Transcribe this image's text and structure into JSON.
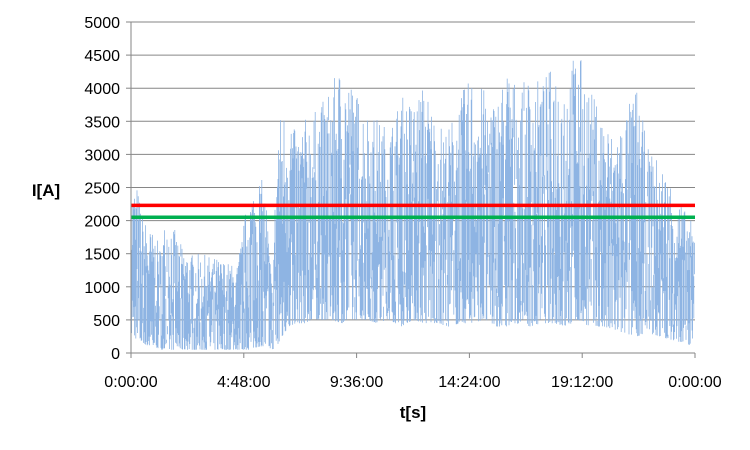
{
  "chart_data": {
    "type": "line",
    "title": "",
    "xlabel": "t[s]",
    "ylabel": "I[A]",
    "xlim": [
      "0:00:00",
      "24:00:00"
    ],
    "ylim": [
      0,
      5000
    ],
    "x_ticks": [
      "0:00:00",
      "4:48:00",
      "9:36:00",
      "14:24:00",
      "19:12:00",
      "0:00:00"
    ],
    "y_ticks": [
      0,
      500,
      1000,
      1500,
      2000,
      2500,
      3000,
      3500,
      4000,
      4500,
      5000
    ],
    "grid": "horizontal",
    "legend": "none",
    "series": [
      {
        "color": "#8eb4e3",
        "x": [
          "0:00:00",
          "0:15:00",
          "0:30:00",
          "0:45:00",
          "1:00:00",
          "1:15:00",
          "1:30:00",
          "1:45:00",
          "2:00:00",
          "2:30:00",
          "3:00:00",
          "3:30:00",
          "4:00:00",
          "4:30:00",
          "5:00:00",
          "5:30:00",
          "5:45:00",
          "6:00:00",
          "6:15:00",
          "6:30:00",
          "6:45:00",
          "7:00:00",
          "7:30:00",
          "8:00:00",
          "8:30:00",
          "9:00:00",
          "9:30:00",
          "10:00:00",
          "10:30:00",
          "11:00:00",
          "11:30:00",
          "12:00:00",
          "12:30:00",
          "13:00:00",
          "13:30:00",
          "14:00:00",
          "14:30:00",
          "15:00:00",
          "15:30:00",
          "16:00:00",
          "16:30:00",
          "17:00:00",
          "17:30:00",
          "18:00:00",
          "18:30:00",
          "19:00:00",
          "19:30:00",
          "20:00:00",
          "20:30:00",
          "21:00:00",
          "21:30:00",
          "22:00:00",
          "22:30:00",
          "23:00:00",
          "23:30:00",
          "24:00:00"
        ],
        "min": [
          300,
          200,
          150,
          100,
          100,
          50,
          50,
          50,
          50,
          50,
          50,
          50,
          50,
          50,
          50,
          100,
          100,
          50,
          100,
          300,
          400,
          450,
          450,
          500,
          500,
          450,
          500,
          500,
          450,
          500,
          400,
          500,
          450,
          450,
          400,
          450,
          450,
          500,
          400,
          400,
          450,
          400,
          450,
          450,
          400,
          500,
          400,
          400,
          350,
          300,
          250,
          300,
          250,
          200,
          150,
          100
        ],
        "max": [
          2500,
          2550,
          2100,
          1900,
          1800,
          1600,
          2100,
          2000,
          1700,
          1500,
          1500,
          1450,
          1400,
          1300,
          2400,
          2700,
          2400,
          1000,
          3550,
          3700,
          3850,
          3300,
          3600,
          3700,
          4050,
          4400,
          4000,
          3700,
          3550,
          3400,
          3900,
          3800,
          4100,
          3500,
          3400,
          3900,
          4200,
          4000,
          3800,
          4350,
          4000,
          4200,
          4100,
          4400,
          4200,
          4650,
          4000,
          3700,
          3300,
          3600,
          4050,
          3100,
          2900,
          2600,
          2200,
          1900
        ]
      }
    ],
    "reference_lines": [
      {
        "y": 2230,
        "color": "#ff0000"
      },
      {
        "y": 2050,
        "color": "#00b050"
      }
    ]
  }
}
